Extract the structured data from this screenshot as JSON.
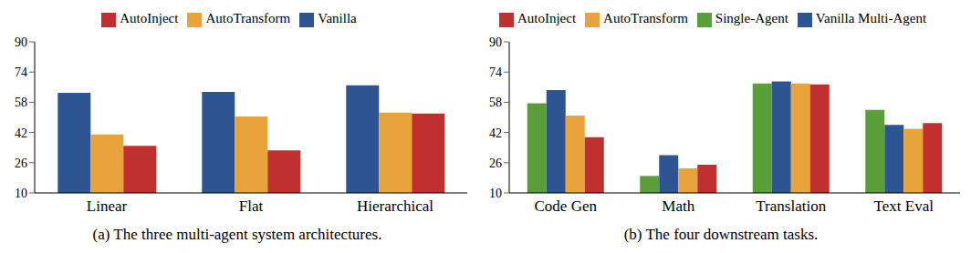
{
  "chart_data": [
    {
      "type": "bar",
      "title": "(a) The three multi-agent system architectures.",
      "categories": [
        "Linear",
        "Flat",
        "Hierarchical"
      ],
      "series": [
        {
          "name": "Vanilla",
          "color": "#2d5591",
          "values": [
            63,
            63.5,
            67
          ]
        },
        {
          "name": "AutoTransform",
          "color": "#e8a33d",
          "values": [
            41,
            50.5,
            52.5
          ]
        },
        {
          "name": "AutoInject",
          "color": "#c0302f",
          "values": [
            35,
            32.5,
            52
          ]
        }
      ],
      "ylim": [
        10,
        90
      ],
      "yticks": [
        10,
        26,
        42,
        58,
        74,
        90
      ],
      "grid": false,
      "legend": "top"
    },
    {
      "type": "bar",
      "title": "(b) The four downstream tasks.",
      "categories": [
        "Code Gen",
        "Math",
        "Translation",
        "Text Eval"
      ],
      "series": [
        {
          "name": "Single-Agent",
          "color": "#5a9e3a",
          "values": [
            57.5,
            19,
            68,
            54
          ]
        },
        {
          "name": "Vanilla Multi-Agent",
          "color": "#2d5591",
          "values": [
            64.5,
            30,
            69,
            46
          ]
        },
        {
          "name": "AutoTransform",
          "color": "#e8a33d",
          "values": [
            51,
            23,
            68,
            44
          ]
        },
        {
          "name": "AutoInject",
          "color": "#c0302f",
          "values": [
            39.5,
            25,
            67.5,
            47
          ]
        }
      ],
      "ylim": [
        10,
        90
      ],
      "yticks": [
        10,
        26,
        42,
        58,
        74,
        90
      ],
      "grid": false,
      "legend": "top"
    }
  ]
}
